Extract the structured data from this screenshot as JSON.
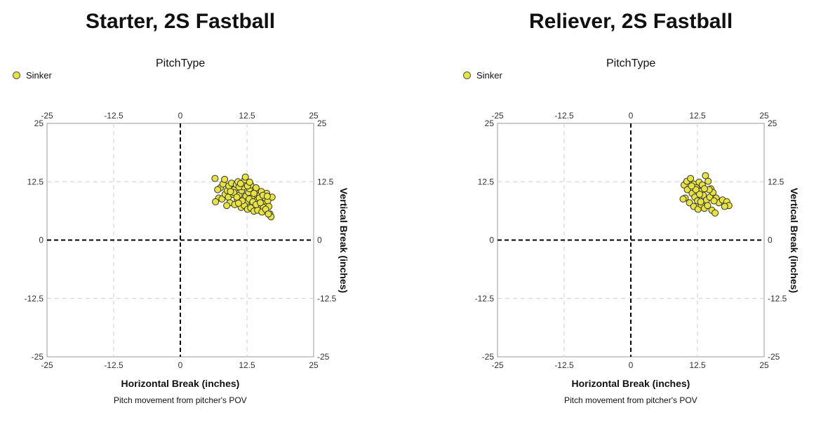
{
  "chart_data": [
    {
      "type": "scatter",
      "title": "Starter, 2S Fastball",
      "legend_title": "PitchType",
      "legend": [
        "Sinker"
      ],
      "xlabel": "Horizontal Break (inches)",
      "ylabel": "Vertical Break (inches)",
      "subtitle": "Pitch movement from pitcher's POV",
      "xlim": [
        -25,
        25
      ],
      "ylim": [
        -25,
        25
      ],
      "ticks": [
        "-25",
        "-12.5",
        "0",
        "12.5",
        "25"
      ],
      "series": [
        {
          "name": "Sinker",
          "color": "#e8e43a",
          "points": [
            [
              6.5,
              13.2
            ],
            [
              7.5,
              11.2
            ],
            [
              8.0,
              12.0
            ],
            [
              8.3,
              13.0
            ],
            [
              7.0,
              10.8
            ],
            [
              7.2,
              9.0
            ],
            [
              6.6,
              8.2
            ],
            [
              7.8,
              8.8
            ],
            [
              8.4,
              9.8
            ],
            [
              8.8,
              10.6
            ],
            [
              9.1,
              11.6
            ],
            [
              9.6,
              12.2
            ],
            [
              9.0,
              9.2
            ],
            [
              9.3,
              8.0
            ],
            [
              8.7,
              7.4
            ],
            [
              9.9,
              9.8
            ],
            [
              10.2,
              10.9
            ],
            [
              10.5,
              11.9
            ],
            [
              10.8,
              12.5
            ],
            [
              11.0,
              9.6
            ],
            [
              10.7,
              8.6
            ],
            [
              10.2,
              7.6
            ],
            [
              11.4,
              7.0
            ],
            [
              11.5,
              10.6
            ],
            [
              11.8,
              11.4
            ],
            [
              12.0,
              12.2
            ],
            [
              12.1,
              12.9
            ],
            [
              12.2,
              13.5
            ],
            [
              12.3,
              9.4
            ],
            [
              12.4,
              8.2
            ],
            [
              12.0,
              7.4
            ],
            [
              12.6,
              6.6
            ],
            [
              12.8,
              10.2
            ],
            [
              13.0,
              11.0
            ],
            [
              13.2,
              11.8
            ],
            [
              13.4,
              9.0
            ],
            [
              13.5,
              7.8
            ],
            [
              13.2,
              6.9
            ],
            [
              13.8,
              6.2
            ],
            [
              14.0,
              10.4
            ],
            [
              14.2,
              11.2
            ],
            [
              14.4,
              8.6
            ],
            [
              14.6,
              7.4
            ],
            [
              14.5,
              6.4
            ],
            [
              14.9,
              9.6
            ],
            [
              15.2,
              10.4
            ],
            [
              15.4,
              8.2
            ],
            [
              15.6,
              7.0
            ],
            [
              15.3,
              6.0
            ],
            [
              15.9,
              9.0
            ],
            [
              16.2,
              10.0
            ],
            [
              16.4,
              8.4
            ],
            [
              16.6,
              7.2
            ],
            [
              16.8,
              5.6
            ],
            [
              16.0,
              6.6
            ],
            [
              17.2,
              9.2
            ],
            [
              17.0,
              5.0
            ],
            [
              16.5,
              5.6
            ],
            [
              10.0,
              10.2
            ],
            [
              11.0,
              11.4
            ],
            [
              12.6,
              11.6
            ],
            [
              13.8,
              10.0
            ],
            [
              14.8,
              9.0
            ],
            [
              15.5,
              9.6
            ],
            [
              9.4,
              10.4
            ],
            [
              10.6,
              9.2
            ],
            [
              11.6,
              8.4
            ],
            [
              12.9,
              8.8
            ],
            [
              13.6,
              8.2
            ],
            [
              14.2,
              7.6
            ],
            [
              11.3,
              12.1
            ],
            [
              13.0,
              12.4
            ],
            [
              10.9,
              7.9
            ],
            [
              15.0,
              8.0
            ],
            [
              16.3,
              9.4
            ]
          ]
        }
      ]
    },
    {
      "type": "scatter",
      "title": "Reliever, 2S Fastball",
      "legend_title": "PitchType",
      "legend": [
        "Sinker"
      ],
      "xlabel": "Horizontal Break (inches)",
      "ylabel": "Vertical Break (inches)",
      "subtitle": "Pitch movement from pitcher's POV",
      "xlim": [
        -25,
        25
      ],
      "ylim": [
        -25,
        25
      ],
      "ticks": [
        "-25",
        "-12.5",
        "0",
        "12.5",
        "25"
      ],
      "series": [
        {
          "name": "Sinker",
          "color": "#e8e43a",
          "points": [
            [
              10.0,
              11.8
            ],
            [
              10.5,
              12.6
            ],
            [
              11.2,
              13.2
            ],
            [
              11.8,
              12.0
            ],
            [
              12.3,
              11.2
            ],
            [
              12.8,
              12.4
            ],
            [
              13.4,
              11.8
            ],
            [
              14.0,
              13.8
            ],
            [
              14.5,
              12.6
            ],
            [
              15.0,
              11.0
            ],
            [
              10.2,
              9.0
            ],
            [
              9.8,
              8.8
            ],
            [
              10.6,
              10.8
            ],
            [
              11.5,
              10.0
            ],
            [
              12.0,
              9.2
            ],
            [
              12.5,
              8.4
            ],
            [
              13.0,
              10.4
            ],
            [
              13.6,
              9.6
            ],
            [
              14.2,
              8.6
            ],
            [
              14.8,
              9.2
            ],
            [
              15.4,
              10.2
            ],
            [
              16.0,
              9.0
            ],
            [
              16.5,
              8.0
            ],
            [
              17.2,
              8.6
            ],
            [
              18.0,
              8.2
            ],
            [
              18.4,
              7.4
            ],
            [
              17.6,
              7.2
            ],
            [
              11.0,
              8.0
            ],
            [
              11.8,
              7.2
            ],
            [
              12.6,
              6.6
            ],
            [
              13.2,
              7.6
            ],
            [
              13.8,
              6.8
            ],
            [
              14.4,
              7.4
            ],
            [
              15.2,
              6.4
            ],
            [
              15.8,
              5.8
            ],
            [
              12.2,
              10.8
            ],
            [
              13.1,
              8.2
            ],
            [
              14.7,
              10.8
            ],
            [
              15.6,
              8.4
            ],
            [
              11.4,
              11.6
            ],
            [
              13.8,
              11.0
            ],
            [
              12.9,
              9.8
            ]
          ]
        }
      ]
    }
  ]
}
